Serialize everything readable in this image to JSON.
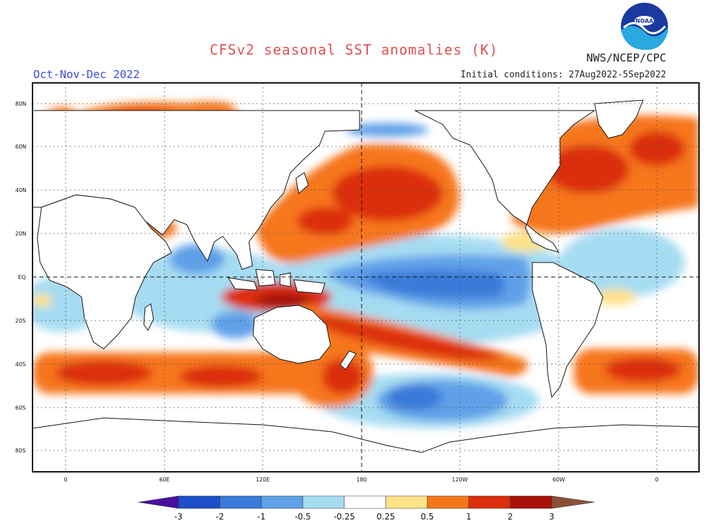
{
  "header": {
    "title": "CFSv2 seasonal SST anomalies (K)",
    "season": "Oct-Nov-Dec 2022",
    "organization": "NWS/NCEP/CPC",
    "initial_conditions": "Initial conditions: 27Aug2022-5Sep2022",
    "logo_text": "NOAA"
  },
  "map": {
    "lat_labels": [
      "80N",
      "60N",
      "40N",
      "20N",
      "EQ",
      "20S",
      "40S",
      "60S",
      "80S"
    ],
    "lon_labels": [
      "0",
      "60E",
      "120E",
      "180",
      "120W",
      "60W",
      "0"
    ]
  },
  "colorbar": {
    "labels": [
      "-3",
      "-2",
      "-1",
      "-0.5",
      "-0.25",
      "0.25",
      "0.5",
      "1",
      "2",
      "3"
    ],
    "colors": {
      "below_min": "#4b0fa0",
      "n3": "#1d50c8",
      "n2": "#3a7ad8",
      "n1": "#60a0e8",
      "n05": "#a6dcf2",
      "neutral": "#ffffff",
      "p025": "#fde28a",
      "p05": "#f6761c",
      "p1": "#db2e0e",
      "p2": "#a81208",
      "above_max": "#8a5038"
    }
  }
}
